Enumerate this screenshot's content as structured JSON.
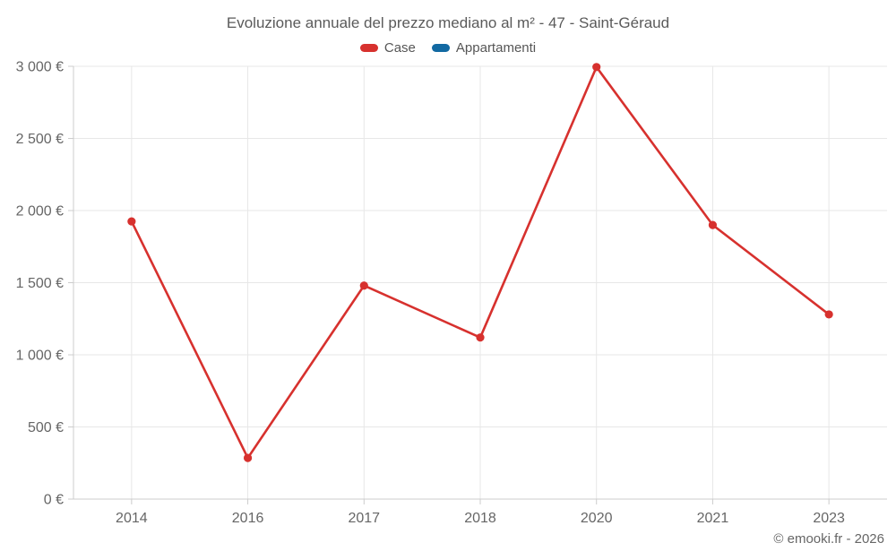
{
  "header": {
    "title": "Evoluzione annuale del prezzo mediano al m² - 47 - Saint-Géraud"
  },
  "legend": {
    "items": [
      {
        "label": "Case",
        "color": "#d7312e"
      },
      {
        "label": "Appartamenti",
        "color": "#1269a2"
      }
    ]
  },
  "footer": {
    "credit": "© emooki.fr - 2026"
  },
  "chart_data": {
    "type": "line",
    "title": "Evoluzione annuale del prezzo mediano al m² - 47 - Saint-Géraud",
    "xlabel": "",
    "ylabel": "",
    "categories": [
      "2014",
      "2016",
      "2017",
      "2018",
      "2020",
      "2021",
      "2023"
    ],
    "series": [
      {
        "name": "Case",
        "color": "#d7312e",
        "values": [
          1925,
          285,
          1480,
          1120,
          2995,
          1900,
          1280
        ]
      },
      {
        "name": "Appartamenti",
        "color": "#1269a2",
        "values": []
      }
    ],
    "ylim": [
      0,
      3000
    ],
    "yticks": [
      {
        "value": 0,
        "label": "0 €"
      },
      {
        "value": 500,
        "label": "500 €"
      },
      {
        "value": 1000,
        "label": "1 000 €"
      },
      {
        "value": 1500,
        "label": "1 500 €"
      },
      {
        "value": 2000,
        "label": "2 000 €"
      },
      {
        "value": 2500,
        "label": "2 500 €"
      },
      {
        "value": 3000,
        "label": "3 000 €"
      }
    ],
    "grid": true,
    "legend_position": "top",
    "colors": {
      "grid": "#e7e7e7",
      "axis": "#cccccc",
      "tick_text": "#666666",
      "title_text": "#5a5a5a"
    }
  }
}
